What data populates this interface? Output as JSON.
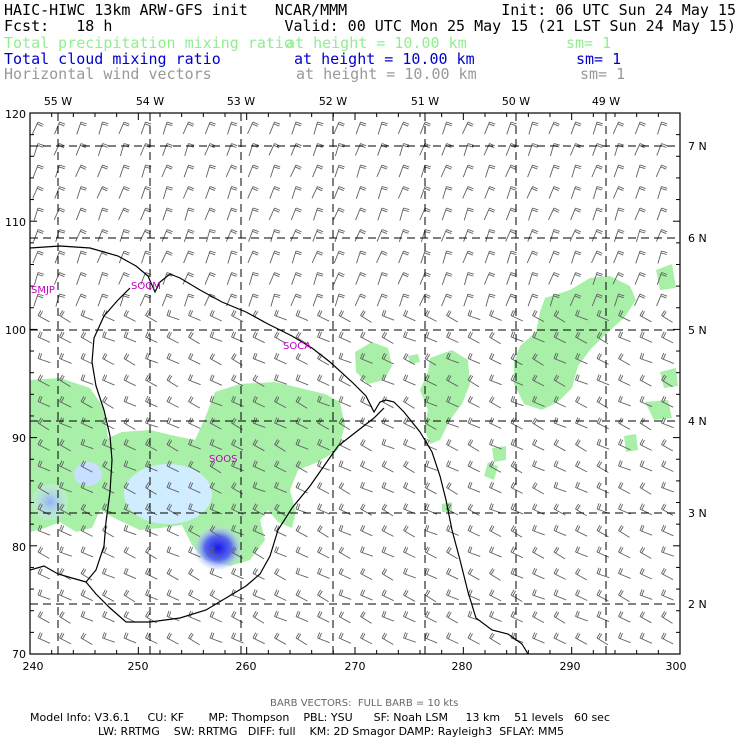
{
  "header": {
    "line1_left": "HAIC-HIWC 13km ARW-GFS init   NCAR/MMM",
    "line1_right": "Init: 06 UTC Sun 24 May 15",
    "line2_left": "Fcst:   18 h",
    "line2_right": "Valid: 00 UTC Mon 25 May 15 (21 LST Sun 24 May 15)",
    "fields": [
      {
        "name": "Total precipitation mixing ratio",
        "height": "at height = 10.00 km",
        "sm": "sm= 1",
        "color": "#90ee90"
      },
      {
        "name": "Total cloud mixing ratio",
        "height": "at height = 10.00 km",
        "sm": "sm= 1",
        "color": "#0000cc"
      },
      {
        "name": "Horizontal wind vectors",
        "height": "at height = 10.00 km",
        "sm": "sm= 1",
        "color": "#999999"
      }
    ]
  },
  "map": {
    "y_tick_labels": [
      "120",
      "110",
      "100",
      "90",
      "80",
      "70"
    ],
    "x_tick_labels": [
      "240",
      "250",
      "260",
      "270",
      "280",
      "290",
      "300"
    ],
    "lon_labels": [
      "55 W",
      "54 W",
      "53 W",
      "52 W",
      "51 W",
      "50 W",
      "49 W"
    ],
    "lat_labels": [
      "7 N",
      "6 N",
      "5 N",
      "4 N",
      "3 N",
      "2 N"
    ],
    "stations": [
      "SMJP",
      "SOCM",
      "SOCA",
      "SOOS"
    ],
    "colors": {
      "precip": "#a8f0a8",
      "cloud_light": "#d8f0ff",
      "cloud_mid": "#a8c8ff",
      "cloud_dark": "#2828f0",
      "coast": "#000000",
      "barb": "#606060"
    }
  },
  "footer": {
    "barb_note": "BARB VECTORS:  FULL BARB = 10 kts",
    "model_line1": "Model Info: V3.6.1     CU: KF       MP: Thompson    PBL: YSU      SF: Noah LSM     13 km    51 levels   60 sec",
    "model_line2": "LW: RRTMG    SW: RRTMG   DIFF: full    KM: 2D Smagor DAMP: Rayleigh3  SFLAY: MM5"
  }
}
